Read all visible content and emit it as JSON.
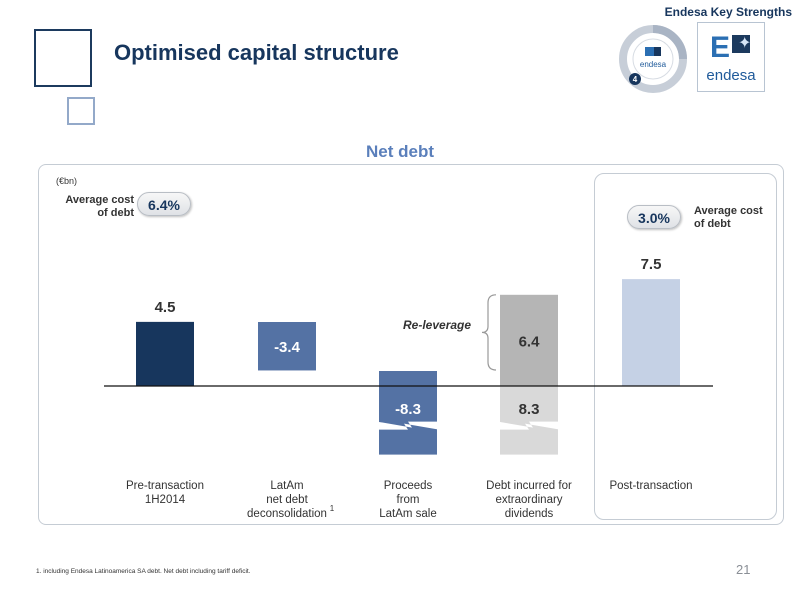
{
  "header": {
    "tag": "Endesa Key Strengths",
    "title": "Optimised capital structure",
    "logo_text": "endesa",
    "cycle_logo_text": "endesa",
    "cycle_number": "4"
  },
  "chart_data": {
    "type": "bar",
    "title": "Net debt",
    "unit": "(€bn)",
    "categories": [
      "Pre-transaction 1H2014",
      "LatAm net debt deconsolidation",
      "Proceeds from LatAm sale",
      "Debt incurred for extraordinary dividends",
      "Post-transaction"
    ],
    "category_lines": [
      [
        "Pre-transaction",
        "1H2014"
      ],
      [
        "LatAm",
        "net debt",
        "deconsolidation"
      ],
      [
        "Proceeds",
        "from",
        "LatAm sale"
      ],
      [
        "Debt incurred for",
        "extraordinary",
        "dividends"
      ],
      [
        "Post-transaction"
      ]
    ],
    "footnote_marker": "1",
    "bars": [
      {
        "category": "Pre-transaction 1H2014",
        "value": 4.5,
        "label": "4.5",
        "color": "#17365d"
      },
      {
        "category": "LatAm net debt deconsolidation",
        "value": -3.4,
        "label": "-3.4",
        "color": "#5472a4"
      },
      {
        "category": "Proceeds from LatAm sale",
        "value": -8.3,
        "label": "-8.3",
        "color": "#5472a4",
        "broken": true
      },
      {
        "category": "Debt incurred for extraordinary dividends",
        "segments": [
          {
            "value": 6.4,
            "label": "6.4",
            "color": "#b5b5b5"
          },
          {
            "value": 8.3,
            "label": "8.3",
            "color": "#d9d9d9",
            "below_zero": true,
            "broken": true
          }
        ]
      },
      {
        "category": "Post-transaction",
        "value": 7.5,
        "label": "7.5",
        "color": "#c5d1e5"
      }
    ],
    "annotations": {
      "average_cost_label": "Average cost of debt",
      "average_cost_before": "6.4%",
      "average_cost_after": "3.0%",
      "releverage": "Re-leverage"
    }
  },
  "footer": {
    "footnote": "1. including Endesa Latinoamerica SA debt. Net debt including tariff deficit.",
    "page_number": "21"
  },
  "colors": {
    "title": "#17365d",
    "chart_title": "#5a7fbb",
    "dark_bar": "#17365d",
    "mid_bar": "#5472a4",
    "light_bar": "#c5d1e5",
    "grey_dark": "#b5b5b5",
    "grey_light": "#d9d9d9"
  }
}
